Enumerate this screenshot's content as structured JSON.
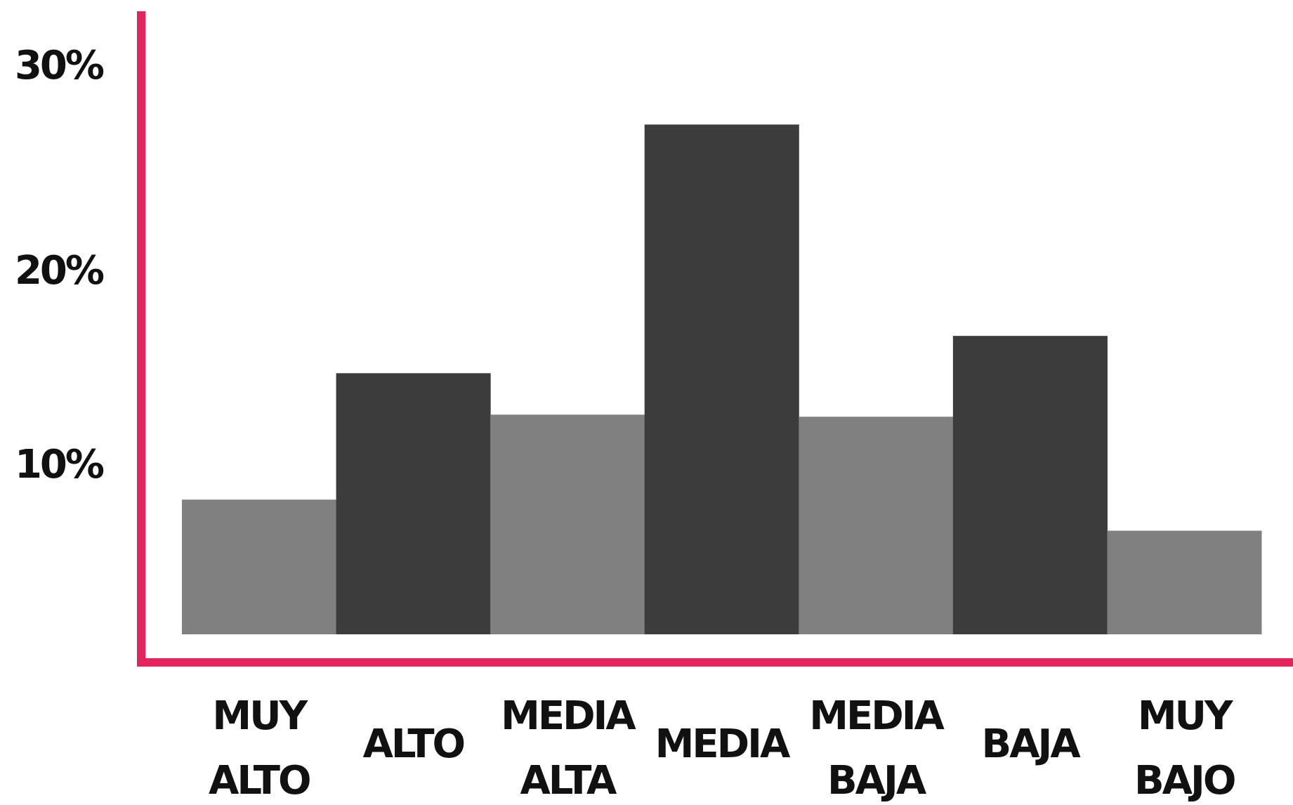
{
  "chart_data": {
    "type": "bar",
    "title": "",
    "xlabel": "",
    "ylabel": "",
    "ylim": [
      0,
      30
    ],
    "y_ticks": [
      {
        "value": 10,
        "label": "10%"
      },
      {
        "value": 20,
        "label": "20%"
      },
      {
        "value": 30,
        "label": "30%"
      }
    ],
    "categories": [
      [
        "MUY",
        "ALTO"
      ],
      [
        "ALTO"
      ],
      [
        "MEDIA",
        "ALTA"
      ],
      [
        "MEDIA"
      ],
      [
        "MEDIA",
        "BAJA"
      ],
      [
        "BAJA"
      ],
      [
        "MUY",
        "BAJO"
      ]
    ],
    "values": [
      6.5,
      12.6,
      10.6,
      24.6,
      10.5,
      14.4,
      5.0
    ],
    "bar_colors": [
      "#808080",
      "#3c3c3c",
      "#808080",
      "#3c3c3c",
      "#808080",
      "#3c3c3c",
      "#808080"
    ],
    "axis_color": "#e3245f",
    "grid": false,
    "legend": "none"
  }
}
